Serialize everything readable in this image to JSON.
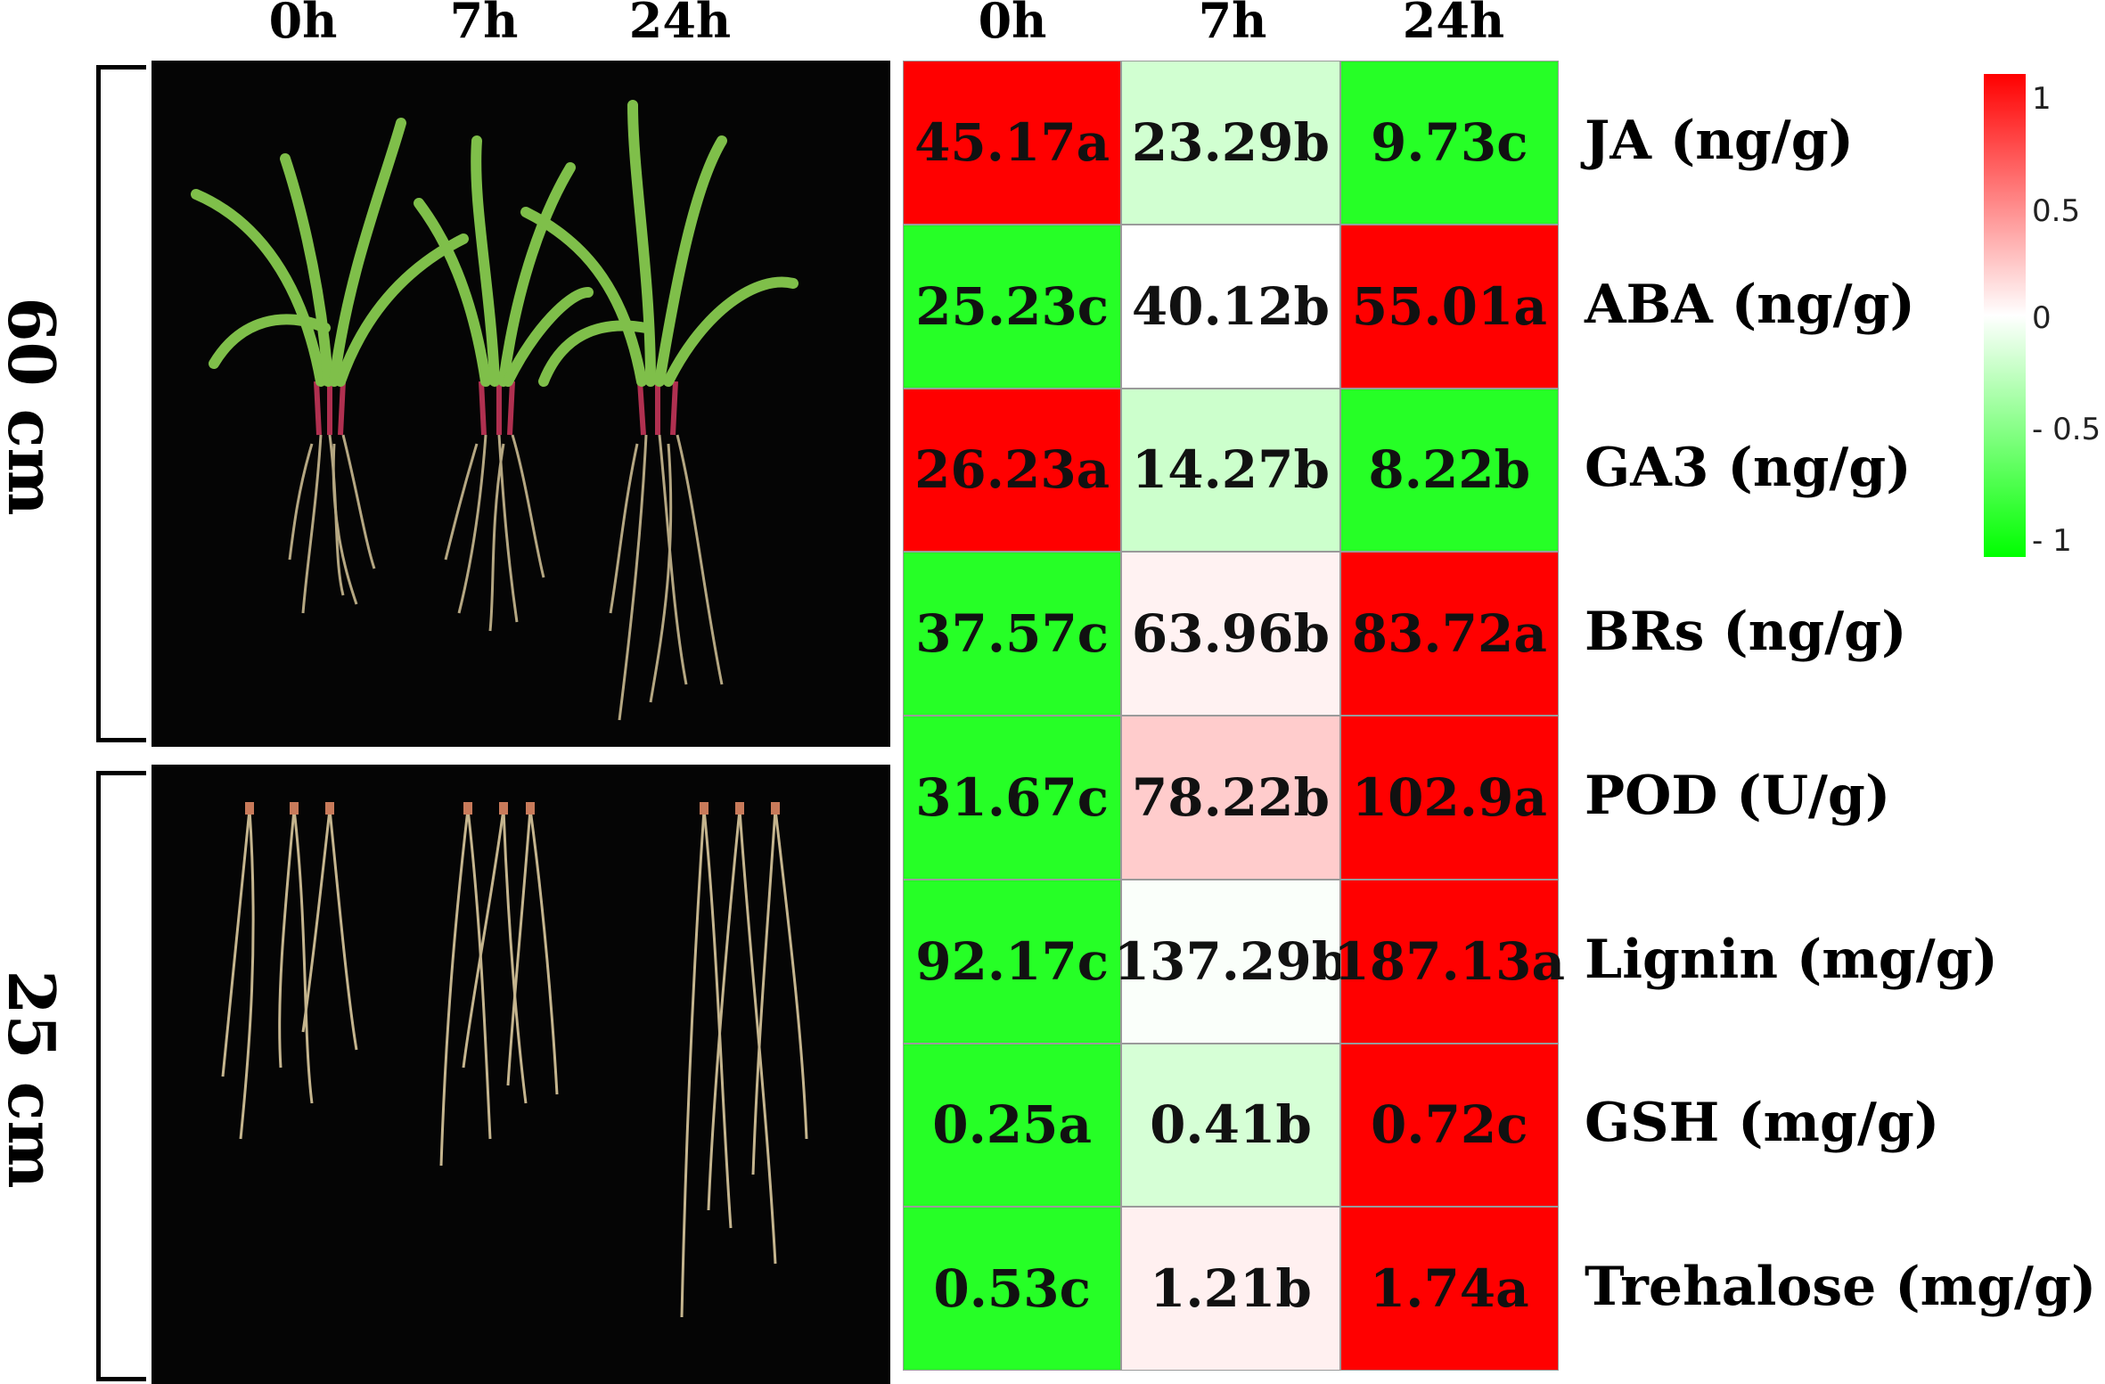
{
  "photo_time_labels": [
    "0h",
    "7h",
    "24h"
  ],
  "heatmap_time_labels": [
    "0h",
    "7h",
    "24h"
  ],
  "side_labels": {
    "top": "60 cm",
    "bottom": "25 cm"
  },
  "colors": {
    "high": "#ff0000",
    "mid": "#ffffff",
    "low": "#00ff00"
  },
  "color_key": {
    "ticks": [
      "1",
      "0.5",
      "0",
      "- 0.5",
      "- 1"
    ],
    "range": [
      -1,
      1
    ]
  },
  "heatmap": {
    "rows": [
      {
        "label": "JA (ng/g)",
        "cells": [
          {
            "text": "45.17a",
            "scale": 1.0
          },
          {
            "text": "23.29b",
            "scale": -0.18
          },
          {
            "text": "9.73c",
            "scale": -0.85
          }
        ]
      },
      {
        "label": "ABA (ng/g)",
        "cells": [
          {
            "text": "25.23c",
            "scale": -0.85
          },
          {
            "text": "40.12b",
            "scale": 0.0
          },
          {
            "text": "55.01a",
            "scale": 1.0
          }
        ]
      },
      {
        "label": "GA3 (ng/g)",
        "cells": [
          {
            "text": "26.23a",
            "scale": 1.0
          },
          {
            "text": "14.27b",
            "scale": -0.2
          },
          {
            "text": "8.22b",
            "scale": -0.85
          }
        ]
      },
      {
        "label": "BRs (ng/g)",
        "cells": [
          {
            "text": "37.57c",
            "scale": -0.85
          },
          {
            "text": "63.96b",
            "scale": 0.05
          },
          {
            "text": "83.72a",
            "scale": 1.0
          }
        ]
      },
      {
        "label": "POD (U/g)",
        "cells": [
          {
            "text": "31.67c",
            "scale": -0.85
          },
          {
            "text": "78.22b",
            "scale": 0.2
          },
          {
            "text": "102.9a",
            "scale": 1.0
          }
        ]
      },
      {
        "label": "Lignin (mg/g)",
        "cells": [
          {
            "text": "92.17c",
            "scale": -0.85
          },
          {
            "text": "137.29b",
            "scale": -0.02
          },
          {
            "text": "187.13a",
            "scale": 1.0
          }
        ]
      },
      {
        "label": "GSH (mg/g)",
        "cells": [
          {
            "text": "0.25a",
            "scale": -0.85
          },
          {
            "text": "0.41b",
            "scale": -0.16
          },
          {
            "text": "0.72c",
            "scale": 1.0
          }
        ]
      },
      {
        "label": "Trehalose (mg/g)",
        "cells": [
          {
            "text": "0.53c",
            "scale": -0.85
          },
          {
            "text": "1.21b",
            "scale": 0.06
          },
          {
            "text": "1.74a",
            "scale": 1.0
          }
        ]
      }
    ]
  }
}
